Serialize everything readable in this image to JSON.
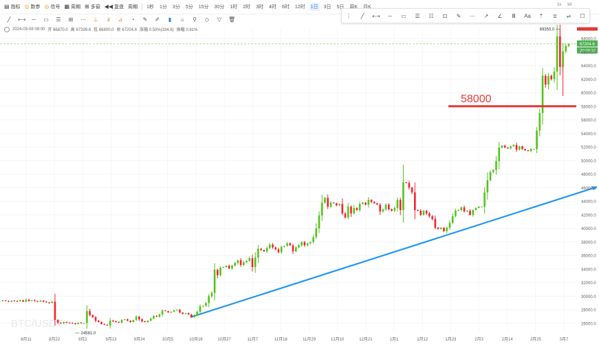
{
  "toolbar": {
    "indicators": "指标",
    "params": "数参",
    "signals": "信号",
    "cycle": "周期",
    "multi": "多窗",
    "replay": "复盘",
    "period": "周期",
    "timeframes": [
      "1秒",
      "1分",
      "3分",
      "5分",
      "15分",
      "30分",
      "1时",
      "2时",
      "3时",
      "4时",
      "6时",
      "12时",
      "1日",
      "3日",
      "5日",
      "周K",
      "月K"
    ],
    "active_timeframe": "1日",
    "right_labels": [
      "1s",
      "1d"
    ]
  },
  "info_line": {
    "datetime": "2024-03-08 08:00",
    "open_label": "开",
    "open": "66870.0",
    "high_label": "高",
    "high": "67339.6",
    "low_label": "低",
    "low": "66800.0",
    "close_label": "收",
    "close": "67204.6",
    "change_label": "涨幅",
    "change": "0.50%(334.6)",
    "amplitude_label": "振幅",
    "amplitude": "0.81%"
  },
  "watermark": "BTC/USDT",
  "current_price": "67204.6",
  "countdown": "20:09:32",
  "high_marker": "69350.0",
  "low_marker": "24581.0",
  "annotation": "58000",
  "colors": {
    "up": "#52c41a",
    "down": "#f5222d",
    "trend": "#2196f3",
    "level": "#e53935",
    "dash": "#7ed957"
  },
  "chart_data": {
    "type": "candlestick",
    "symbol": "BTC/USDT",
    "x_tick_labels": [
      "8月11",
      "8月22",
      "9月2",
      "9月13",
      "9月24",
      "10月5",
      "10月16",
      "10月27",
      "11月7",
      "11月18",
      "11月29",
      "12月10",
      "12月21",
      "1月1",
      "1月12",
      "1月23",
      "2月3",
      "2月14",
      "2月25",
      "3月7"
    ],
    "y_tick_labels": [
      "26000.0",
      "28000.0",
      "30000.0",
      "32000.0",
      "34000.0",
      "36000.0",
      "38000.0",
      "40000.0",
      "42000.0",
      "44000.0",
      "46000.0",
      "48000.0",
      "50000.0",
      "52000.0",
      "54000.0",
      "56000.0",
      "58000.0",
      "60000.0",
      "62000.0",
      "64000.0",
      "66000.0",
      "68000.0"
    ],
    "ylim": [
      25000,
      70000
    ],
    "closes": [
      29400,
      29300,
      29200,
      29350,
      29300,
      29250,
      29400,
      29200,
      29500,
      29300,
      29400,
      29300,
      29200,
      29350,
      29200,
      29100,
      29000,
      29200,
      26500,
      26100,
      26000,
      26200,
      26100,
      26050,
      26000,
      25900,
      26100,
      26000,
      26050,
      27800,
      27200,
      26900,
      26400,
      26200,
      25900,
      25800,
      25700,
      26400,
      26300,
      26200,
      26100,
      26500,
      26600,
      26400,
      26200,
      26500,
      27000,
      26600,
      26300,
      26200,
      26400,
      26700,
      27100,
      27000,
      27300,
      27900,
      27800,
      27600,
      27700,
      27900,
      28000,
      27600,
      27400,
      27500,
      27300,
      26900,
      27200,
      27700,
      28500,
      28600,
      29000,
      30000,
      30500,
      33900,
      33100,
      34200,
      34300,
      34500,
      34100,
      34500,
      34900,
      35300,
      34600,
      35000,
      35200,
      35600,
      34300,
      35700,
      37000,
      36800,
      36600,
      37100,
      37600,
      37200,
      36900,
      36500,
      37300,
      37400,
      37800,
      37500,
      36600,
      37200,
      37500,
      38000,
      37500,
      37800,
      38000,
      38700,
      40000,
      41900,
      43800,
      44500,
      43200,
      43800,
      43700,
      43400,
      43600,
      42200,
      41600,
      43200,
      42200,
      43000,
      42700,
      43600,
      43800,
      43500,
      44200,
      43900,
      43700,
      43500,
      42500,
      42800,
      43500,
      42800,
      42600,
      43000,
      44200,
      42700,
      46800,
      46700,
      46000,
      45300,
      42700,
      42600,
      42000,
      42600,
      42200,
      41800,
      41400,
      40100,
      39900,
      40100,
      39600,
      40100,
      40800,
      41800,
      42600,
      42700,
      43100,
      42500,
      42600,
      42000,
      42700,
      43000,
      43200,
      43200,
      45300,
      47100,
      48300,
      48600,
      49900,
      51900,
      52200,
      51900,
      51800,
      52100,
      52300,
      51600,
      52100,
      51700,
      51500,
      51400,
      51700,
      51700,
      54400,
      57000,
      62500,
      61200,
      62500,
      62000,
      63100,
      68300,
      63800,
      66100,
      66900,
      67200
    ],
    "high_marker": 69350,
    "low_marker": 24581,
    "current_price": 67204.6,
    "horizontal_line": {
      "price": 58000,
      "label": "58000"
    },
    "trend_line": {
      "from": {
        "x_label": "10月16",
        "price": 26900
      },
      "to": {
        "x_label": "3月7",
        "price": 45300
      }
    }
  }
}
